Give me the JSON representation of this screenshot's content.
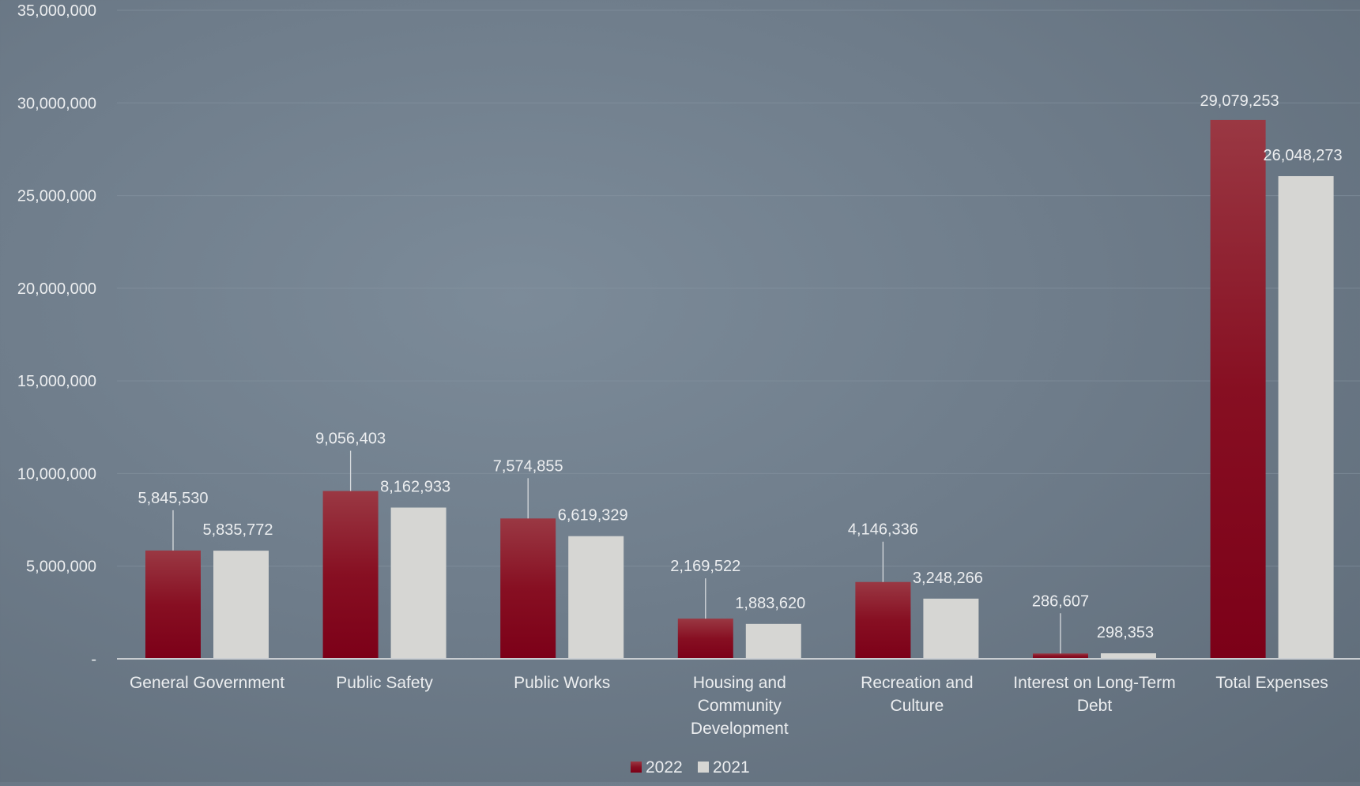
{
  "chart_data": {
    "type": "bar",
    "title": "",
    "xlabel": "",
    "ylabel": "",
    "ylim": [
      0,
      35000000
    ],
    "yticks": [
      {
        "value": 0,
        "label": "-"
      },
      {
        "value": 5000000,
        "label": "5,000,000"
      },
      {
        "value": 10000000,
        "label": "10,000,000"
      },
      {
        "value": 15000000,
        "label": "15,000,000"
      },
      {
        "value": 20000000,
        "label": "20,000,000"
      },
      {
        "value": 25000000,
        "label": "25,000,000"
      },
      {
        "value": 30000000,
        "label": "30,000,000"
      },
      {
        "value": 35000000,
        "label": "35,000,000"
      }
    ],
    "categories": [
      [
        "General Government"
      ],
      [
        "Public Safety"
      ],
      [
        "Public Works"
      ],
      [
        "Housing and",
        "Community",
        "Development"
      ],
      [
        "Recreation and",
        "Culture"
      ],
      [
        "Interest on Long-Term",
        "Debt"
      ],
      [
        "Total Expenses"
      ]
    ],
    "series": [
      {
        "name": "2022",
        "color": "#8c0a1e",
        "values": [
          5845530,
          9056403,
          7574855,
          2169522,
          4146336,
          286607,
          29079253
        ],
        "labels": [
          "5,845,530",
          "9,056,403",
          "7,574,855",
          "2,169,522",
          "4,146,336",
          "286,607",
          "29,079,253"
        ]
      },
      {
        "name": "2021",
        "color": "#d6d6d3",
        "values": [
          5835772,
          8162933,
          6619329,
          1883620,
          3248266,
          298353,
          26048273
        ],
        "labels": [
          "5,835,772",
          "8,162,933",
          "6,619,329",
          "1,883,620",
          "3,248,266",
          "298,353",
          "26,048,273"
        ]
      }
    ],
    "grid": true,
    "legend_position": "bottom"
  }
}
